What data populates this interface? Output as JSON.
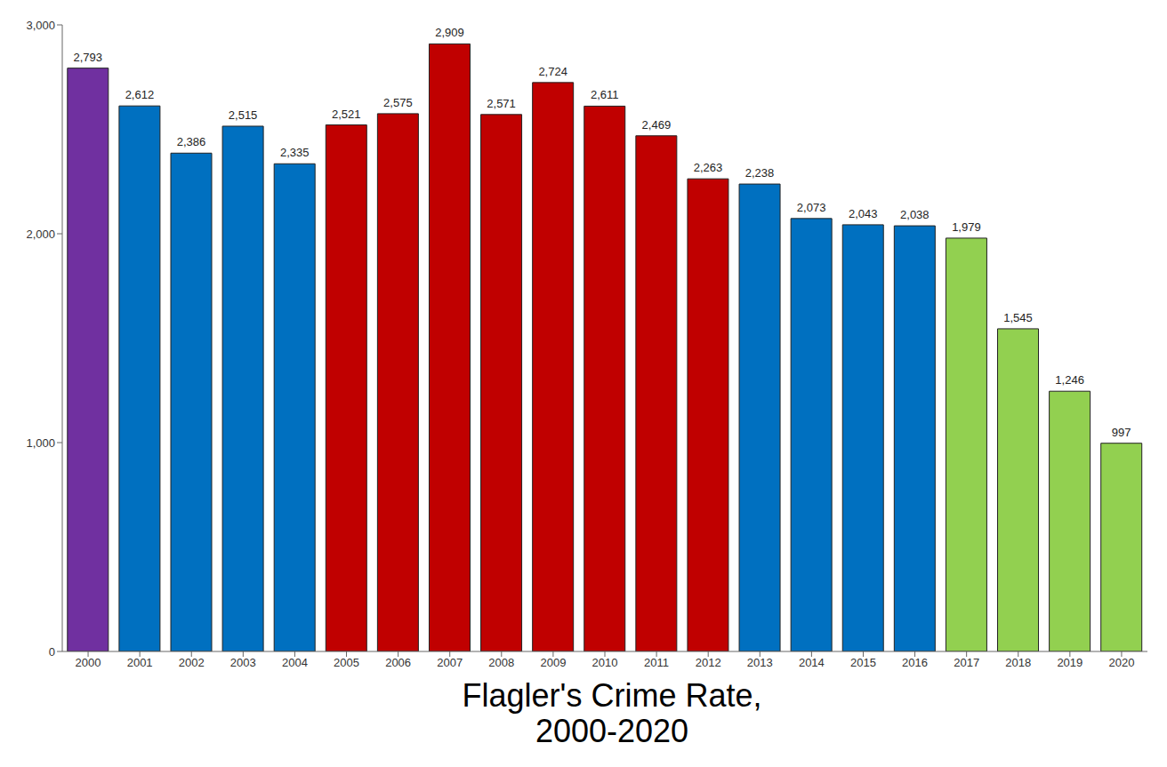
{
  "chart_data": {
    "type": "bar",
    "title": "Flagler's Crime Rate, 2000-2020",
    "categories": [
      "2000",
      "2001",
      "2002",
      "2003",
      "2004",
      "2005",
      "2006",
      "2007",
      "2008",
      "2009",
      "2010",
      "2011",
      "2012",
      "2013",
      "2014",
      "2015",
      "2016",
      "2017",
      "2018",
      "2019",
      "2020"
    ],
    "values": [
      2793,
      2612,
      2386,
      2515,
      2335,
      2521,
      2575,
      2909,
      2571,
      2724,
      2611,
      2469,
      2263,
      2238,
      2073,
      2043,
      2038,
      1979,
      1545,
      1246,
      997
    ],
    "value_labels": [
      "2,793",
      "2,612",
      "2,386",
      "2,515",
      "2,335",
      "2,521",
      "2,575",
      "2,909",
      "2,571",
      "2,724",
      "2,611",
      "2,469",
      "2,263",
      "2,238",
      "2,073",
      "2,043",
      "2,038",
      "1,979",
      "1,545",
      "1,246",
      "997"
    ],
    "colors": [
      "#7030a0",
      "#0070c0",
      "#0070c0",
      "#0070c0",
      "#0070c0",
      "#c00000",
      "#c00000",
      "#c00000",
      "#c00000",
      "#c00000",
      "#c00000",
      "#c00000",
      "#c00000",
      "#0070c0",
      "#0070c0",
      "#0070c0",
      "#0070c0",
      "#92d050",
      "#92d050",
      "#92d050",
      "#92d050"
    ],
    "ylim": [
      0,
      3000
    ],
    "yticks": [
      0,
      {
        "value": 1000,
        "label": "1,000"
      },
      {
        "value": 2000,
        "label": "2,000"
      },
      {
        "value": 3000,
        "label": "3,000"
      }
    ],
    "grid": false,
    "data_labels": true
  }
}
